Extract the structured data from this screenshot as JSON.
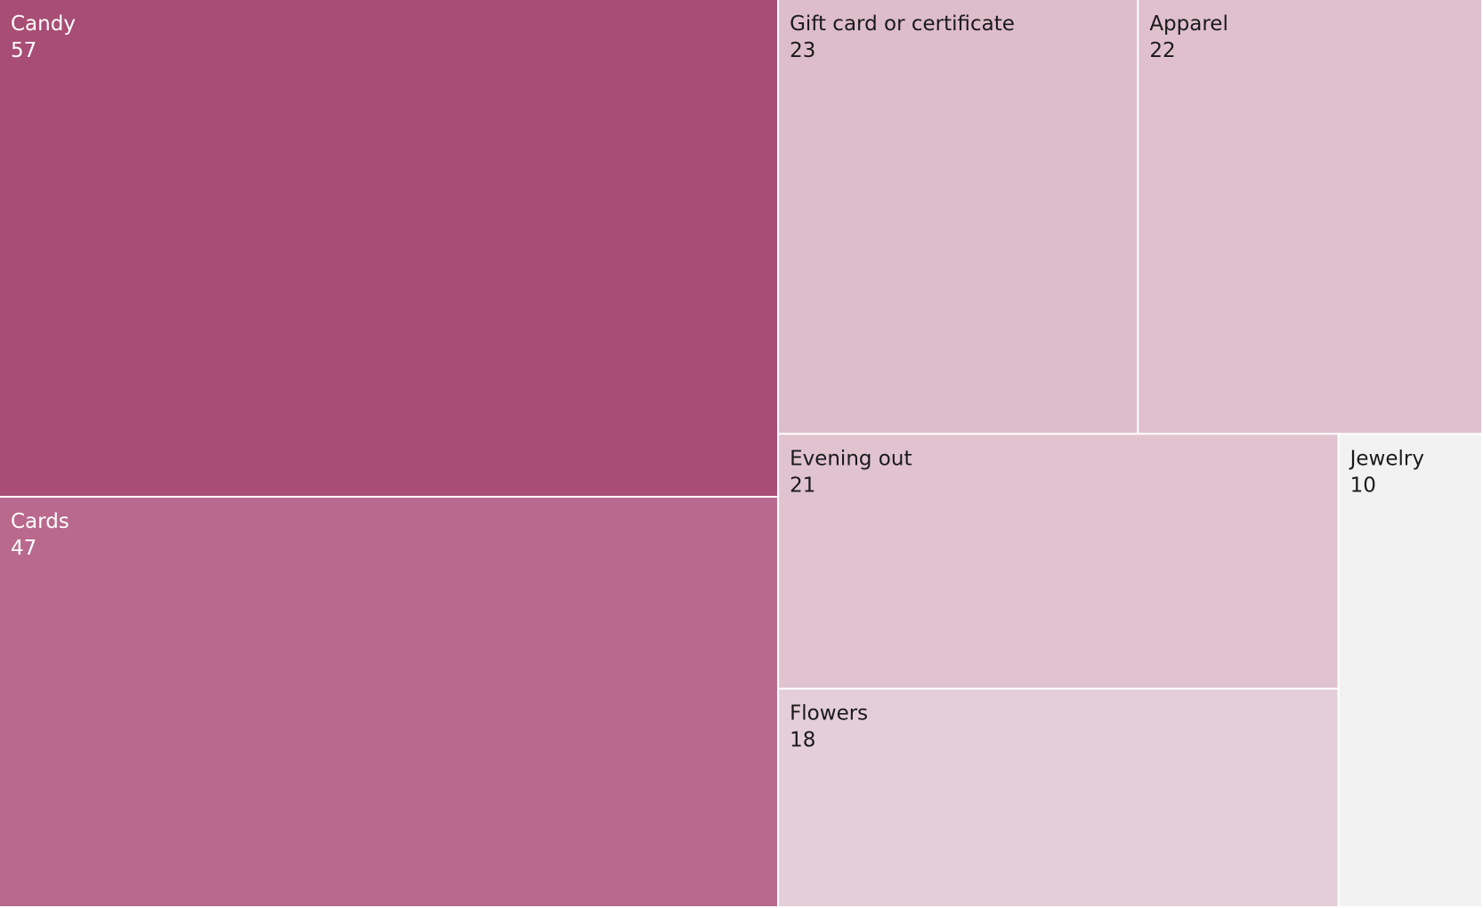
{
  "chart_data": {
    "type": "treemap",
    "title": "",
    "items": [
      {
        "name": "Candy",
        "value": 57,
        "color": "#a84d75",
        "text_color": "#ffffff"
      },
      {
        "name": "Cards",
        "value": 47,
        "color": "#b9698d",
        "text_color": "#ffffff"
      },
      {
        "name": "Gift card or certificate",
        "value": 23,
        "color": "#debdca",
        "text_color": "#1a1a1a"
      },
      {
        "name": "Apparel",
        "value": 22,
        "color": "#dfc0cc",
        "text_color": "#1a1a1a"
      },
      {
        "name": "Evening out",
        "value": 21,
        "color": "#e1c3cf",
        "text_color": "#1a1a1a"
      },
      {
        "name": "Flowers",
        "value": 18,
        "color": "#e4ced8",
        "text_color": "#1a1a1a"
      },
      {
        "name": "Jewelry",
        "value": 10,
        "color": "#f2f2f2",
        "text_color": "#1a1a1a"
      }
    ]
  }
}
